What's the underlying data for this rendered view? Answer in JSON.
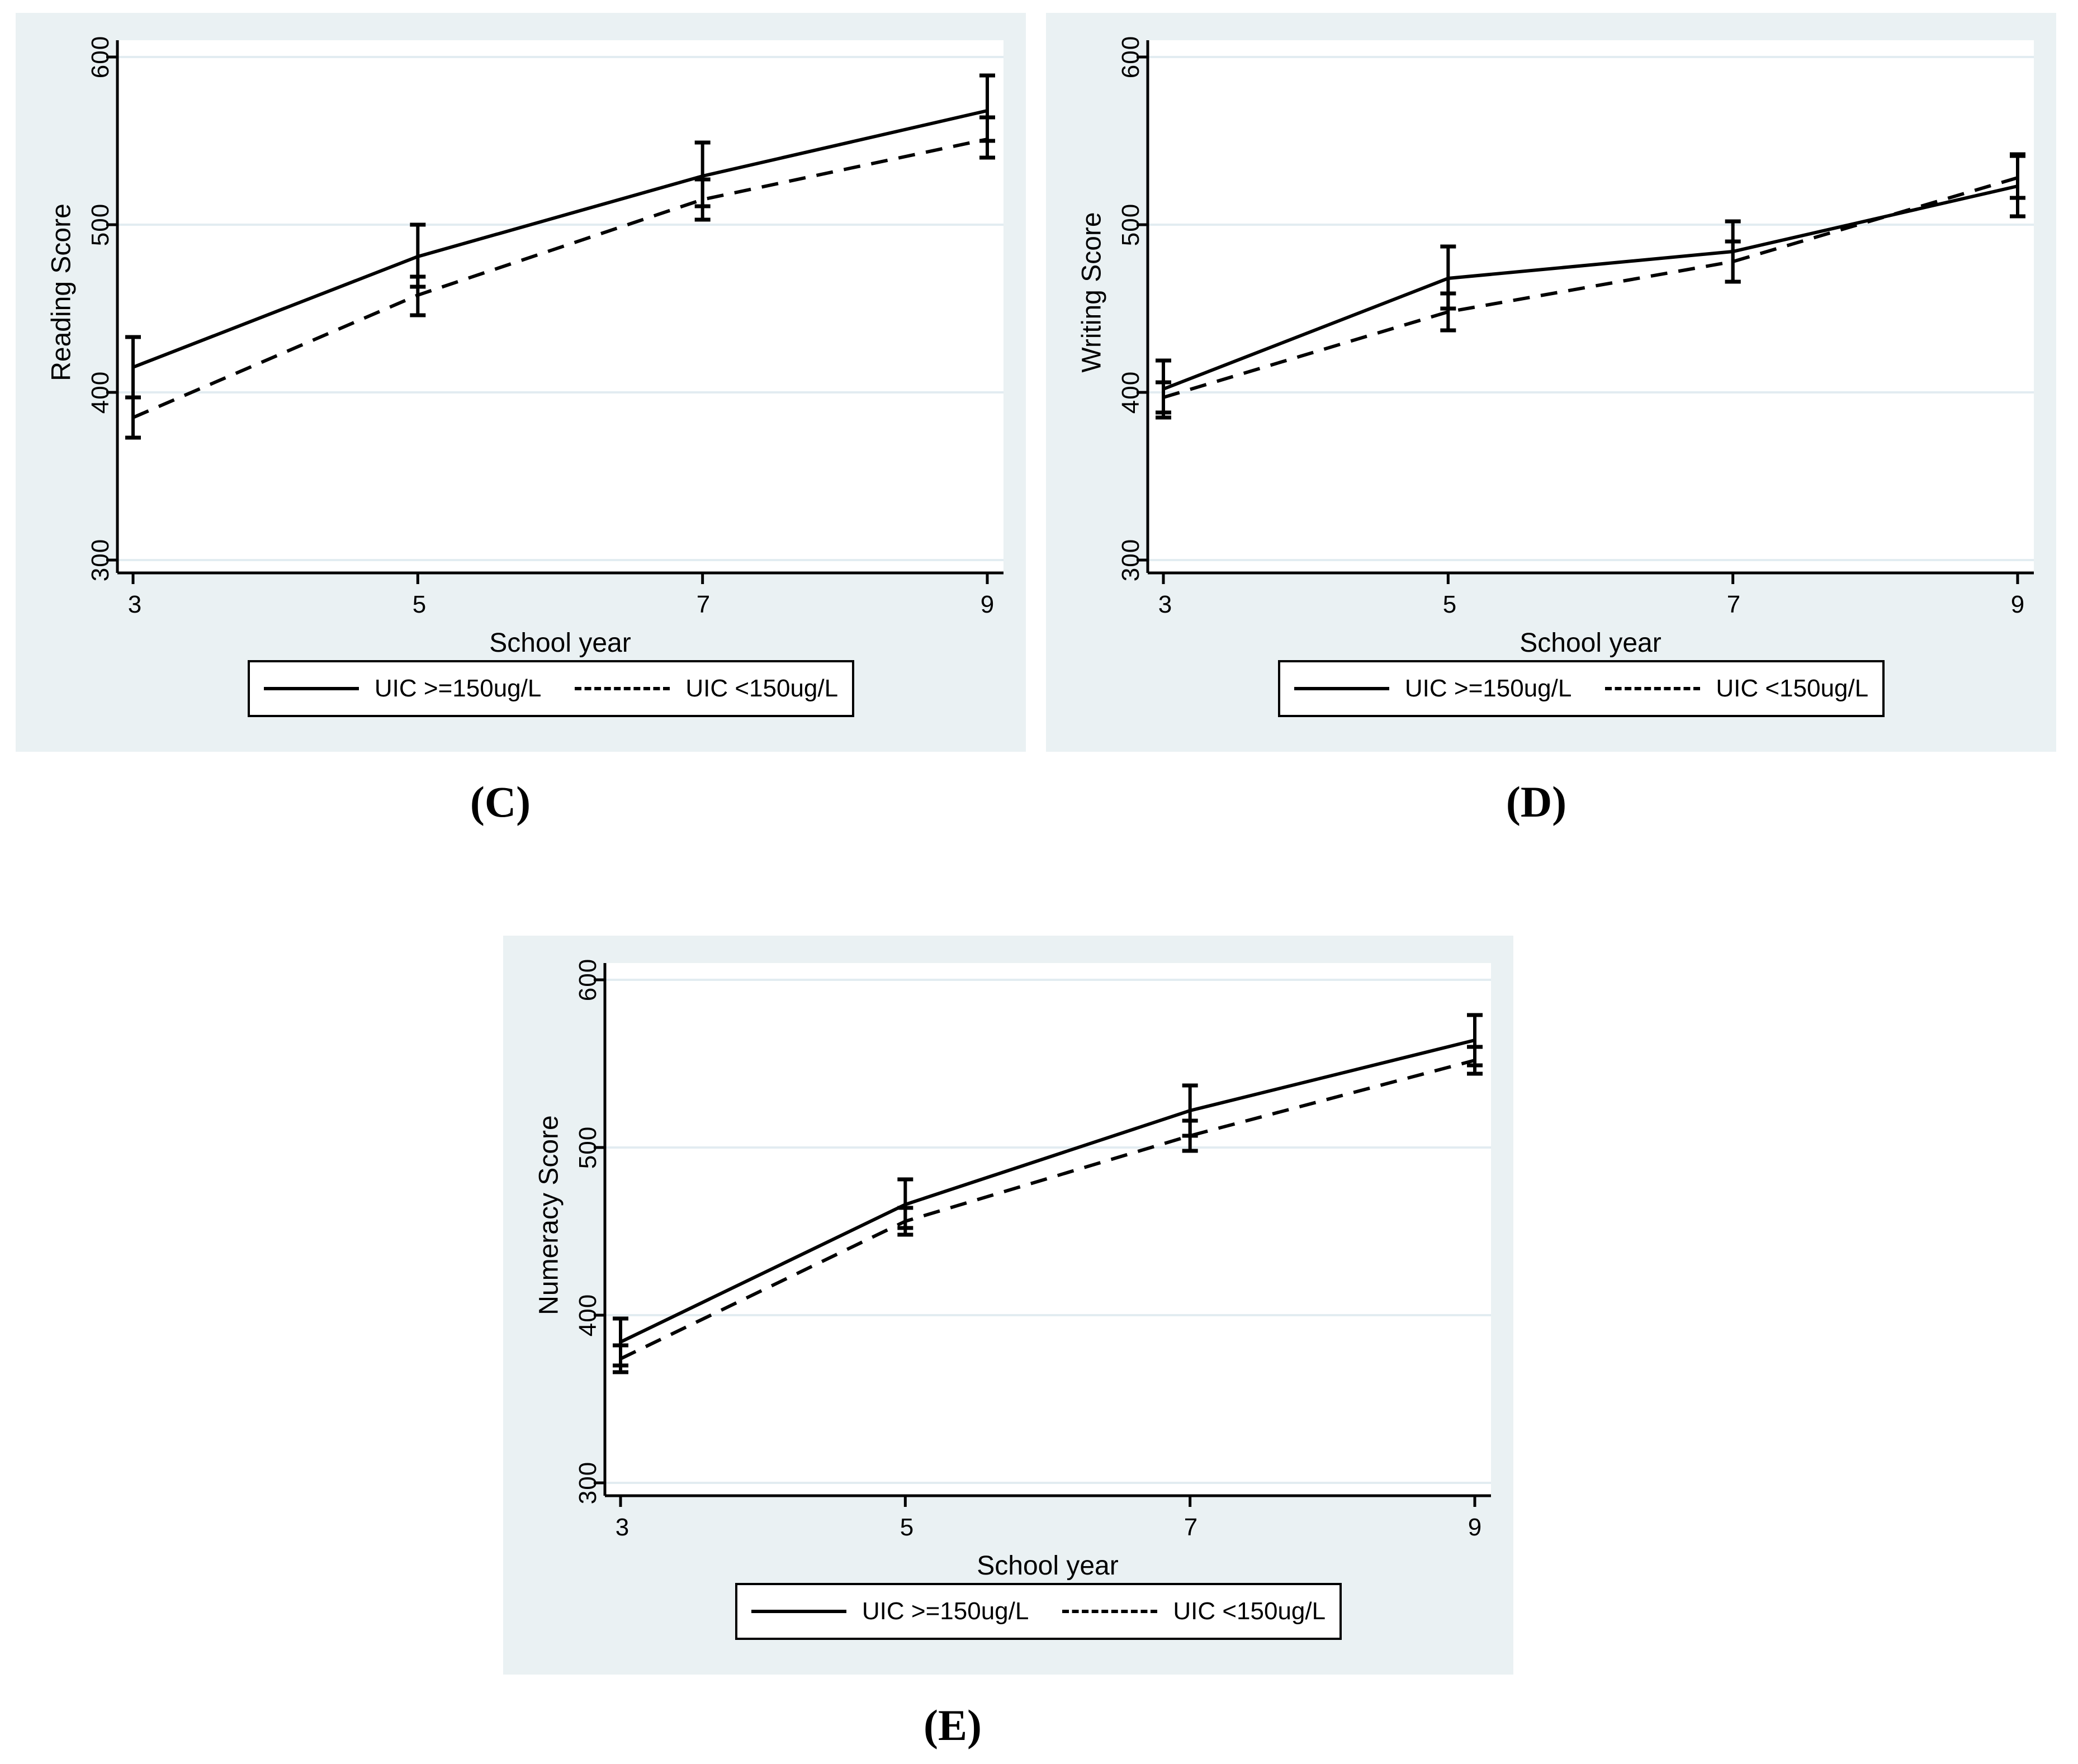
{
  "figure": {
    "bg_color": "#eaf1f3",
    "grid_color": "#e2ecf1",
    "line_color": "#000000",
    "xlabel": "School year",
    "xticks": [
      "3",
      "5",
      "7",
      "9"
    ],
    "yticks": [
      "600",
      "500",
      "400",
      "300"
    ],
    "legend": {
      "solid_label": "UIC >=150ug/L",
      "dashed_label": "UIC <150ug/L"
    }
  },
  "panels": [
    {
      "letter": "(C)",
      "ylabel": "Reading Score"
    },
    {
      "letter": "(D)",
      "ylabel": "Writing Score"
    },
    {
      "letter": "(E)",
      "ylabel": "Numeracy Score"
    }
  ],
  "chart_data": [
    {
      "type": "line",
      "panel_label": "(C)",
      "title": "",
      "xlabel": "School year",
      "ylabel": "Reading Score",
      "x": [
        3,
        5,
        7,
        9
      ],
      "yticks": [
        600,
        500,
        400,
        300
      ],
      "ylim": [
        292,
        610
      ],
      "grid": true,
      "legend_position": "bottom",
      "error_bars": true,
      "series": [
        {
          "name": "UIC >=150ug/L",
          "style": "solid",
          "values": [
            415,
            481,
            529,
            568
          ],
          "ci_low": [
            397,
            463,
            511,
            550
          ],
          "ci_high": [
            433,
            500,
            549,
            589
          ]
        },
        {
          "name": "UIC <150ug/L",
          "style": "dashed",
          "values": [
            385,
            458,
            515,
            551
          ],
          "ci_low": [
            373,
            446,
            503,
            540
          ],
          "ci_high": [
            397,
            469,
            527,
            564
          ]
        }
      ]
    },
    {
      "type": "line",
      "panel_label": "(D)",
      "title": "",
      "xlabel": "School year",
      "ylabel": "Writing Score",
      "x": [
        3,
        5,
        7,
        9
      ],
      "yticks": [
        600,
        500,
        400,
        300
      ],
      "ylim": [
        292,
        610
      ],
      "grid": true,
      "legend_position": "bottom",
      "error_bars": true,
      "series": [
        {
          "name": "UIC >=150ug/L",
          "style": "solid",
          "values": [
            402,
            468,
            484,
            523
          ],
          "ci_low": [
            385,
            450,
            466,
            505
          ],
          "ci_high": [
            419,
            487,
            502,
            541
          ]
        },
        {
          "name": "UIC <150ug/L",
          "style": "dashed",
          "values": [
            397,
            448,
            478,
            528
          ],
          "ci_low": [
            388,
            437,
            466,
            516
          ],
          "ci_high": [
            406,
            459,
            490,
            542
          ]
        }
      ]
    },
    {
      "type": "line",
      "panel_label": "(E)",
      "title": "",
      "xlabel": "School year",
      "ylabel": "Numeracy Score",
      "x": [
        3,
        5,
        7,
        9
      ],
      "yticks": [
        600,
        500,
        400,
        300
      ],
      "ylim": [
        292,
        610
      ],
      "grid": true,
      "legend_position": "bottom",
      "error_bars": true,
      "series": [
        {
          "name": "UIC >=150ug/L",
          "style": "solid",
          "values": [
            384,
            466,
            522,
            564
          ],
          "ci_low": [
            370,
            452,
            507,
            549
          ],
          "ci_high": [
            398,
            481,
            537,
            579
          ]
        },
        {
          "name": "UIC <150ug/L",
          "style": "dashed",
          "values": [
            374,
            456,
            507,
            552
          ],
          "ci_low": [
            366,
            448,
            498,
            544
          ],
          "ci_high": [
            382,
            464,
            516,
            560
          ]
        }
      ]
    }
  ]
}
